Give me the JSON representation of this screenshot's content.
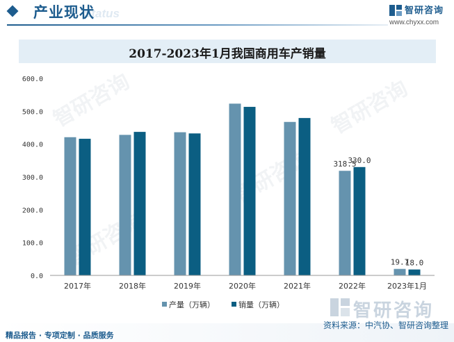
{
  "header": {
    "title": "产业现状",
    "subtitle": "Status",
    "brand_name": "智研咨询",
    "brand_url": "www.chyxx.com"
  },
  "chart_data": {
    "type": "bar",
    "title": "2017-2023年1月我国商用车产销量",
    "categories": [
      "2017年",
      "2018年",
      "2019年",
      "2020年",
      "2021年",
      "2022年",
      "2023年1月"
    ],
    "series": [
      {
        "name": "产量（万辆）",
        "color": "#6593ae",
        "values": [
          420.9,
          428.0,
          436.0,
          523.1,
          467.4,
          318.5,
          19.7
        ]
      },
      {
        "name": "销量（万辆）",
        "color": "#0b5e82",
        "values": [
          416.1,
          437.1,
          432.4,
          513.3,
          479.3,
          330.0,
          18.0
        ]
      }
    ],
    "data_labels": [
      {
        "series": 0,
        "index": 5,
        "text": "318.5"
      },
      {
        "series": 1,
        "index": 5,
        "text": "330.0"
      },
      {
        "series": 0,
        "index": 6,
        "text": "19.7"
      },
      {
        "series": 1,
        "index": 6,
        "text": "18.0"
      }
    ],
    "yticks": [
      "0.0",
      "100.0",
      "200.0",
      "300.0",
      "400.0",
      "500.0",
      "600.0"
    ],
    "ylim": [
      0,
      600
    ],
    "xlabel": "",
    "ylabel": "",
    "grid": false,
    "legend_position": "bottom"
  },
  "footer": {
    "left_text": "精品报告 · 专项定制 · 品质服务",
    "logo_text": "智研咨询",
    "source_text": "资料来源：中汽协、智研咨询整理"
  }
}
